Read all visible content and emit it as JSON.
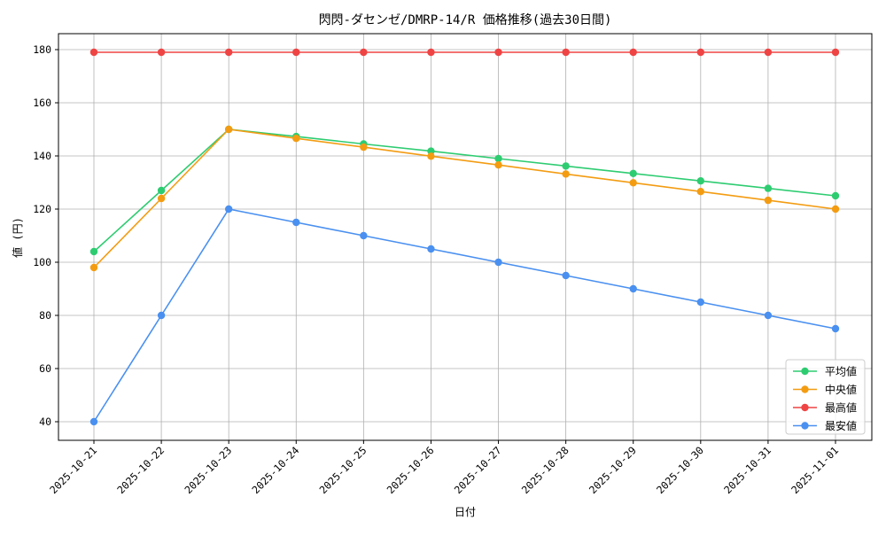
{
  "chart_data": {
    "type": "line",
    "title": "閃閃-ダセンゼ/DMRP-14/R 価格推移(過去30日間)",
    "xlabel": "日付",
    "ylabel": "値 (円)",
    "ylim": [
      33,
      186
    ],
    "yticks": [
      40,
      60,
      80,
      100,
      120,
      140,
      160,
      180
    ],
    "grid": true,
    "legend_position": "lower-right",
    "categories": [
      "2025-10-21",
      "2025-10-22",
      "2025-10-23",
      "2025-10-24",
      "2025-10-25",
      "2025-10-26",
      "2025-10-27",
      "2025-10-28",
      "2025-10-29",
      "2025-10-30",
      "2025-10-31",
      "2025-11-01"
    ],
    "series": [
      {
        "name": "平均値",
        "color": "#2ecc71",
        "values": [
          104,
          127,
          150,
          147.3,
          144.5,
          141.8,
          139,
          136.2,
          133.4,
          130.6,
          127.8,
          125
        ]
      },
      {
        "name": "中央値",
        "color": "#f39c12",
        "values": [
          98,
          124,
          150,
          146.6,
          143.3,
          139.9,
          136.6,
          133.2,
          129.9,
          126.6,
          123.3,
          120
        ]
      },
      {
        "name": "最高値",
        "color": "#ef4444",
        "values": [
          179,
          179,
          179,
          179,
          179,
          179,
          179,
          179,
          179,
          179,
          179,
          179
        ]
      },
      {
        "name": "最安値",
        "color": "#4a90f0",
        "values": [
          40,
          80,
          120,
          115,
          110,
          105,
          100,
          95,
          90,
          85,
          80,
          75
        ]
      }
    ]
  }
}
